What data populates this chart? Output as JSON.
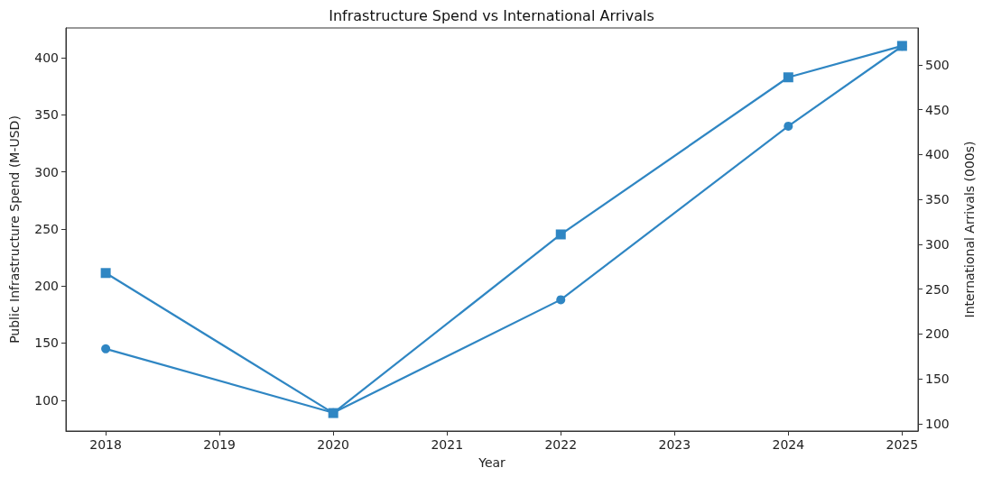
{
  "chart_data": {
    "type": "line",
    "title": "Infrastructure Spend vs International Arrivals",
    "xlabel": "Year",
    "ylabel": "Public Infrastructure Spend (M-USD)",
    "y2label": "International Arrivals (000s)",
    "x": [
      2018,
      2020,
      2022,
      2024,
      2025
    ],
    "series": [
      {
        "color": "#2f86c3",
        "marker": "circle",
        "values": [
          145,
          89,
          188,
          340,
          410
        ]
      },
      {
        "color": "#2f86c3",
        "marker": "square",
        "axis": "y2",
        "values": [
          268,
          112,
          311,
          486,
          521
        ]
      }
    ],
    "xlim": [
      2017.65,
      2025.14
    ],
    "xticks": [
      2018,
      2019,
      2020,
      2021,
      2022,
      2023,
      2024,
      2025
    ],
    "ylim": [
      73,
      426
    ],
    "yticks": [
      100,
      150,
      200,
      250,
      300,
      350,
      400
    ],
    "y2lim": [
      92,
      541
    ],
    "y2ticks": [
      100,
      150,
      200,
      250,
      300,
      350,
      400,
      450,
      500
    ],
    "line_style": "solid"
  }
}
